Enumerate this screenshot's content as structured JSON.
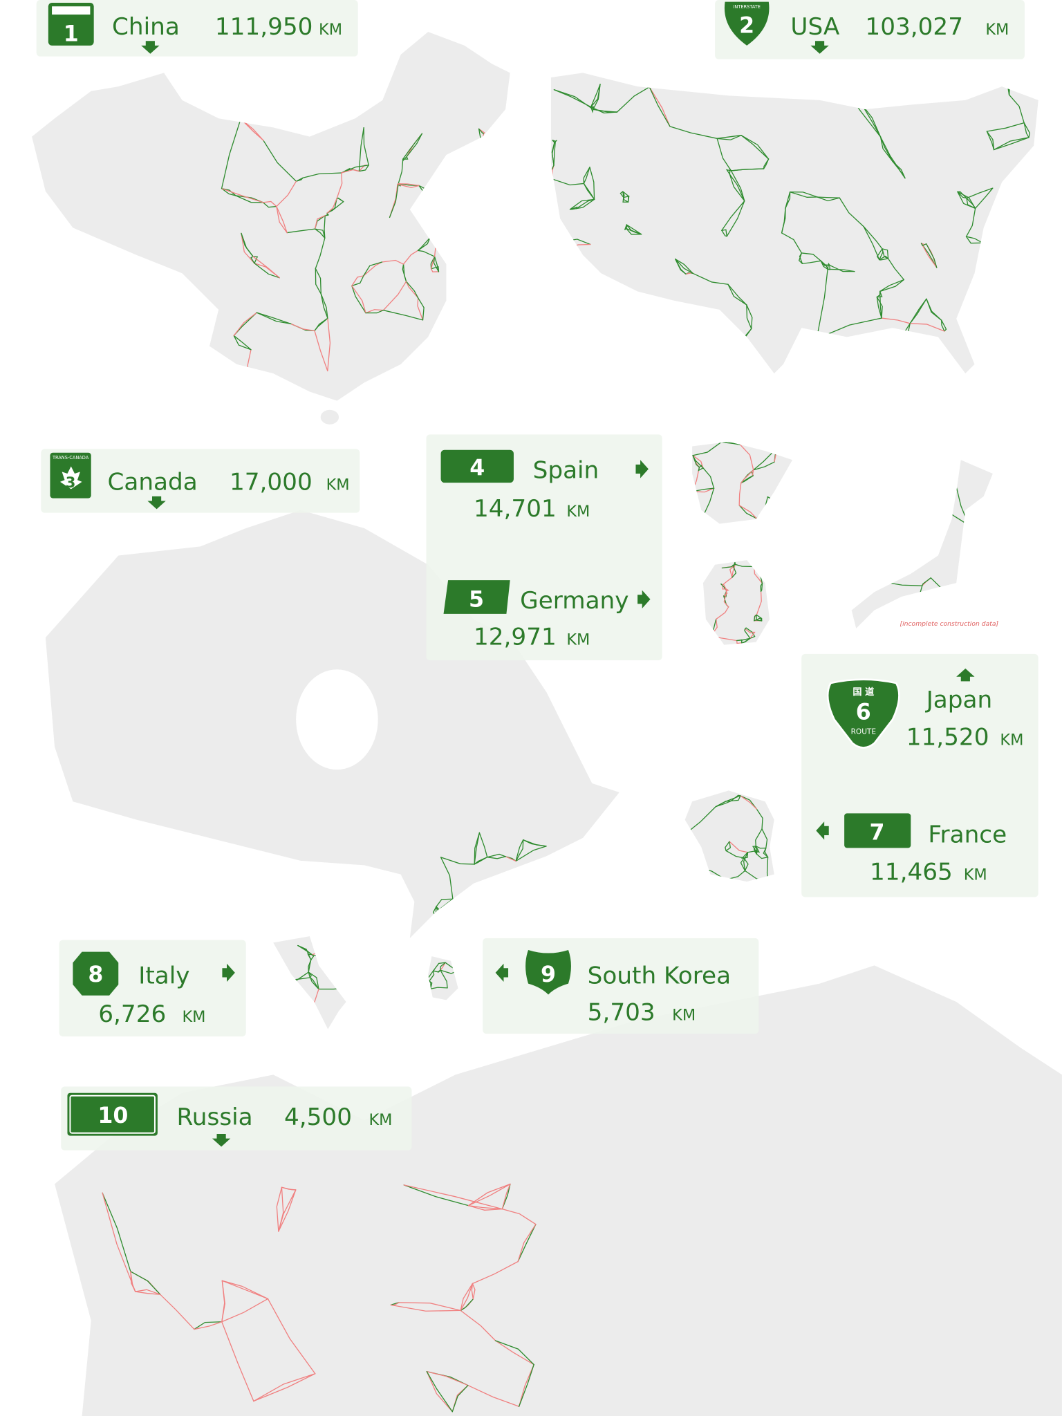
{
  "signs": [
    {
      "rank": "1",
      "country": "China",
      "length": "111,950",
      "unit": "KM"
    },
    {
      "rank": "2",
      "shield_text": "INTERSTATE",
      "country": "USA",
      "length": "103,027",
      "unit": "KM"
    },
    {
      "rank": "3",
      "shield_text": "TRANS-CANADA",
      "country": "Canada",
      "length": "17,000",
      "unit": "KM"
    },
    {
      "rank": "4",
      "country": "Spain",
      "length": "14,701",
      "unit": "KM"
    },
    {
      "rank": "5",
      "country": "Germany",
      "length": "12,971",
      "unit": "KM"
    },
    {
      "rank": "6",
      "shield_text": "国 道",
      "shield_subtext": "ROUTE",
      "country": "Japan",
      "length": "11,520",
      "unit": "KM"
    },
    {
      "rank": "7",
      "country": "France",
      "length": "11,465",
      "unit": "KM"
    },
    {
      "rank": "8",
      "country": "Italy",
      "length": "6,726",
      "unit": "KM"
    },
    {
      "rank": "9",
      "country": "South Korea",
      "length": "5,703",
      "unit": "KM"
    },
    {
      "rank": "10",
      "country": "Russia",
      "length": "4,500",
      "unit": "KM"
    }
  ],
  "japan_note": "[incomplete construction data]"
}
